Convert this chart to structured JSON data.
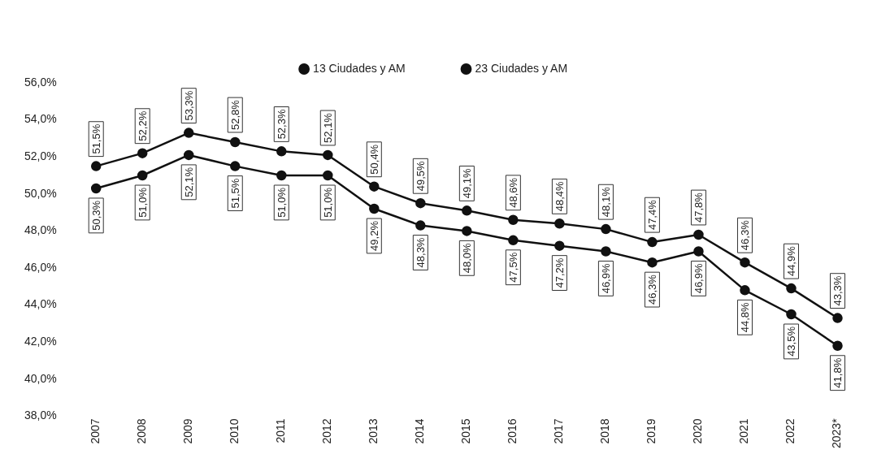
{
  "chart_data": {
    "type": "line",
    "categories": [
      "2007",
      "2008",
      "2009",
      "2010",
      "2011",
      "2012",
      "2013",
      "2014",
      "2015",
      "2016",
      "2017",
      "2018",
      "2019",
      "2020",
      "2021",
      "2022",
      "2023*"
    ],
    "series": [
      {
        "name": "13 Ciudades y AM",
        "color": "#111111",
        "values": [
          50.3,
          51.0,
          52.1,
          51.5,
          51.0,
          51.0,
          49.2,
          48.3,
          48.0,
          47.5,
          47.2,
          46.9,
          46.3,
          46.9,
          44.8,
          43.5,
          41.8
        ],
        "value_labels": [
          "50,3%",
          "51,0%",
          "52,1%",
          "51,5%",
          "51,0%",
          "51,0%",
          "49,2%",
          "48,3%",
          "48,0%",
          "47,5%",
          "47,2%",
          "46,9%",
          "46,3%",
          "46,9%",
          "44,8%",
          "43,5%",
          "41,8%"
        ]
      },
      {
        "name": "23 Ciudades y AM",
        "color": "#111111",
        "values": [
          51.5,
          52.2,
          53.3,
          52.8,
          52.3,
          52.1,
          50.4,
          49.5,
          49.1,
          48.6,
          48.4,
          48.1,
          47.4,
          47.8,
          46.3,
          44.9,
          43.3
        ],
        "value_labels": [
          "51,5%",
          "52,2%",
          "53,3%",
          "52,8%",
          "52,3%",
          "52,1%",
          "50,4%",
          "49,5%",
          "49,1%",
          "48,6%",
          "48,4%",
          "48,1%",
          "47,4%",
          "47,8%",
          "46,3%",
          "44,9%",
          "43,3%"
        ]
      }
    ],
    "ylim": [
      38,
      56
    ],
    "yticks": [
      {
        "value": 38,
        "label": "38,0%"
      },
      {
        "value": 40,
        "label": "40,0%"
      },
      {
        "value": 42,
        "label": "42,0%"
      },
      {
        "value": 44,
        "label": "44,0%"
      },
      {
        "value": 46,
        "label": "46,0%"
      },
      {
        "value": 48,
        "label": "48,0%"
      },
      {
        "value": 50,
        "label": "50,0%"
      },
      {
        "value": 52,
        "label": "52,0%"
      },
      {
        "value": 54,
        "label": "54,0%"
      },
      {
        "value": 56,
        "label": "56,0%"
      }
    ],
    "grid": false,
    "legend": "top",
    "marker": "circle",
    "line_style": "solid"
  }
}
